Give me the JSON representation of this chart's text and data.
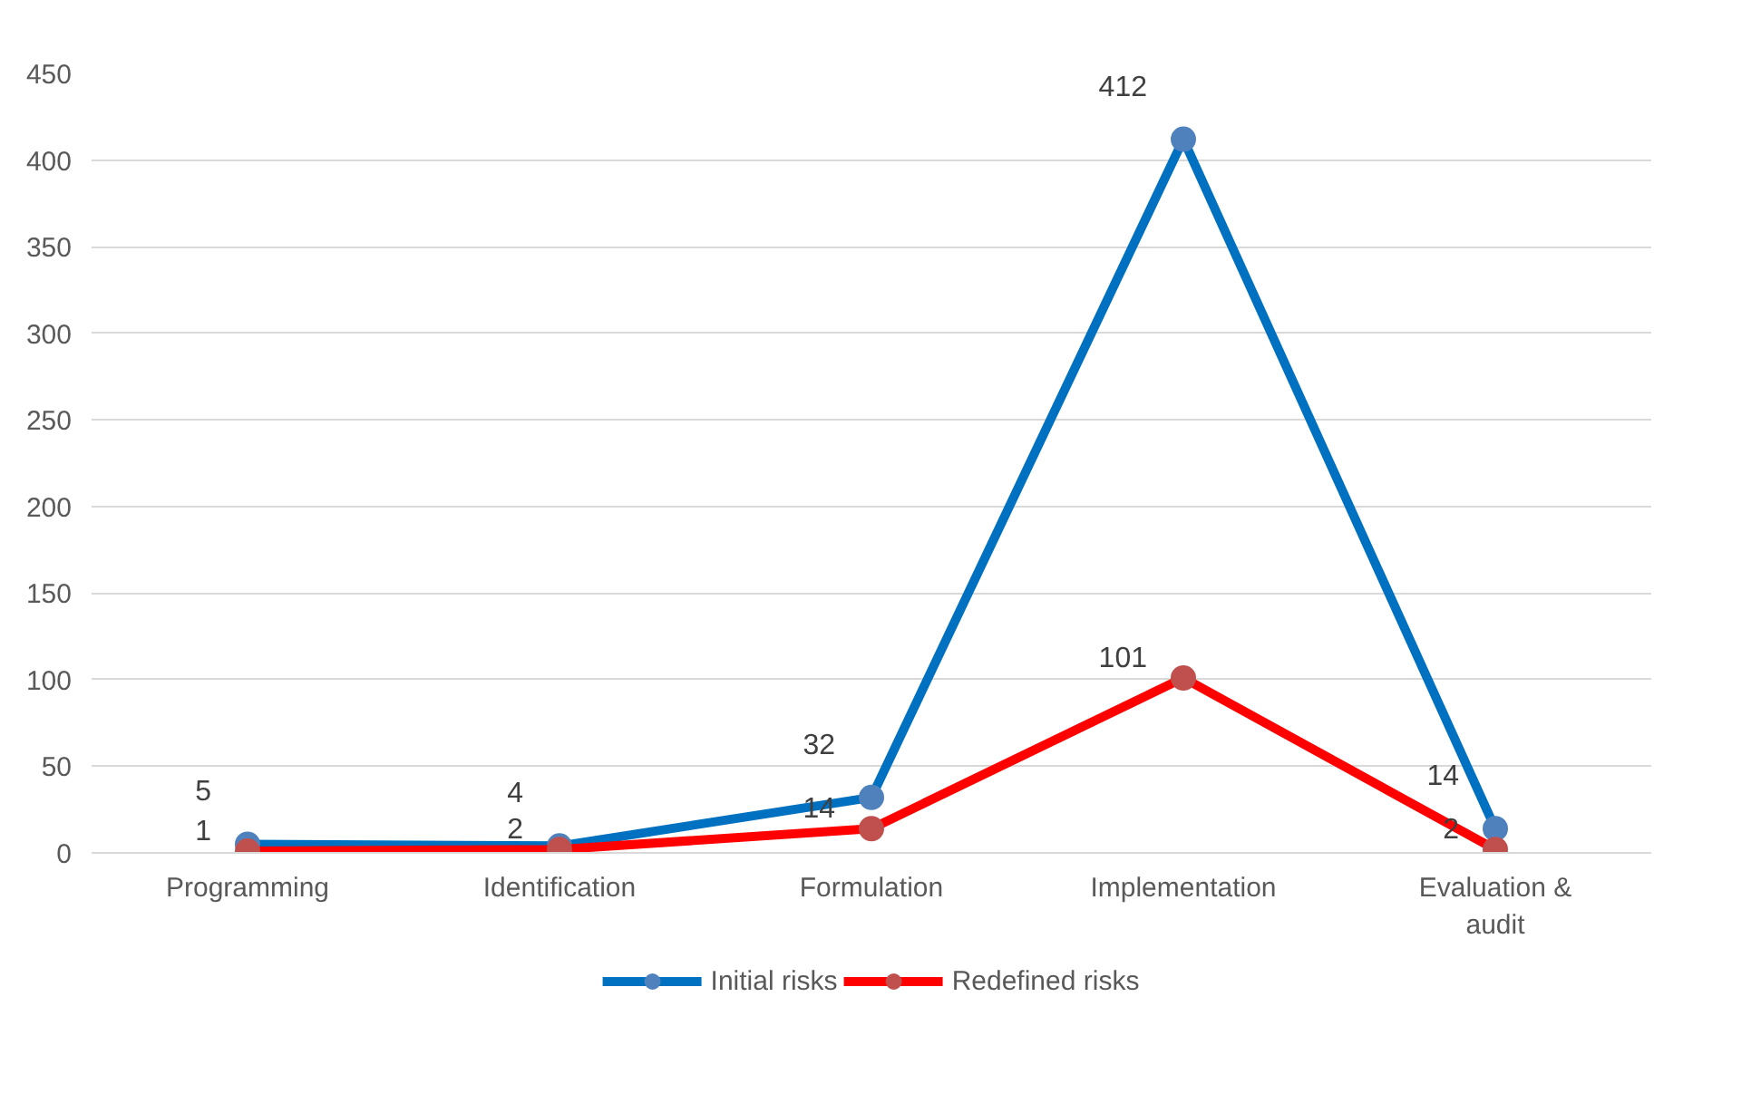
{
  "chart_data": {
    "type": "line",
    "categories": [
      "Programming",
      "Identification",
      "Formulation",
      "Implementation",
      "Evaluation & audit"
    ],
    "series": [
      {
        "name": "Initial risks",
        "color": "#0070c0",
        "values": [
          5,
          4,
          32,
          412,
          14
        ]
      },
      {
        "name": "Redefined risks",
        "color": "#ff0000",
        "values": [
          1,
          2,
          14,
          101,
          2
        ]
      }
    ],
    "ylim": [
      0,
      450
    ],
    "yticks": [
      0,
      50,
      100,
      150,
      200,
      250,
      300,
      350,
      400,
      450
    ],
    "grid": "y",
    "legend": "bottom",
    "marker": "circle",
    "line_style": "solid",
    "data_labels": true
  }
}
